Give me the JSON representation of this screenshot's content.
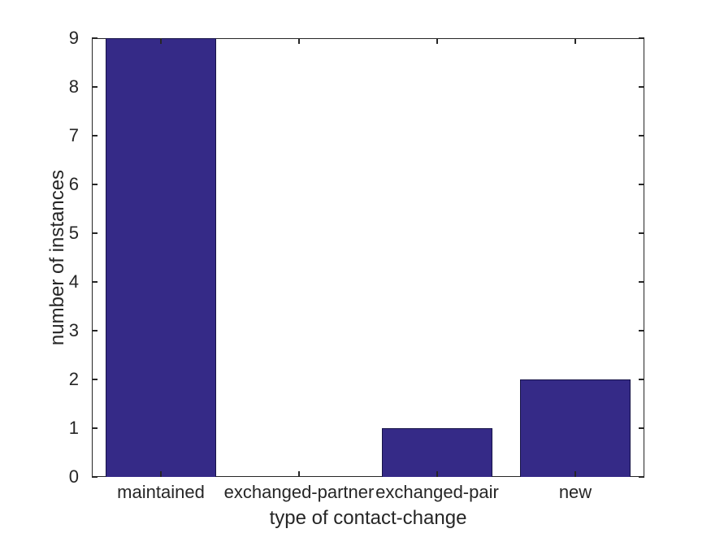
{
  "chart_data": {
    "type": "bar",
    "categories": [
      "maintained",
      "exchanged-partner",
      "exchanged-pair",
      "new"
    ],
    "values": [
      9,
      0,
      1,
      2
    ],
    "title": "",
    "xlabel": "type of contact-change",
    "ylabel": "number of instances",
    "ylim": [
      0,
      9
    ],
    "yticks": [
      0,
      1,
      2,
      3,
      4,
      5,
      6,
      7,
      8,
      9
    ],
    "bar_width_fraction": 0.8,
    "grid": false,
    "legend": "none",
    "box": true,
    "tick_dir": "in",
    "colors": {
      "bar_fill": "#352A87",
      "bar_edge": "#161347",
      "axis": "#262626",
      "text": "#262626",
      "background": "#ffffff"
    }
  }
}
